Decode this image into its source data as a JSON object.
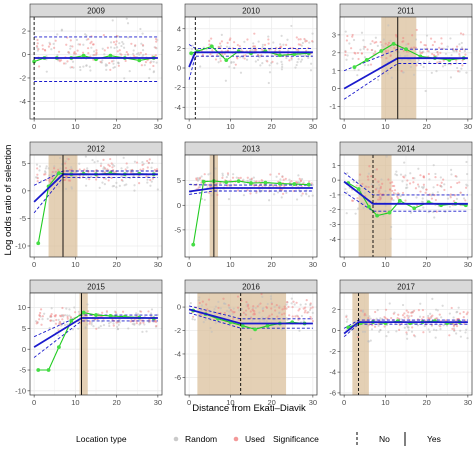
{
  "chart_data": {
    "type": "scatter",
    "layout": "facet-grid-3x3",
    "xlabel": "Distance from Ekati–Diavik",
    "ylabel": "Log odds ratio of selection",
    "x_ticks": [
      0,
      10,
      20,
      30
    ],
    "xlim": [
      -1,
      31
    ],
    "legend": {
      "location_type_title": "Location type",
      "location_types": [
        {
          "name": "Random",
          "color": "#bdbdbd"
        },
        {
          "name": "Used",
          "color": "#f08080"
        }
      ],
      "significance_title": "Significance",
      "significance_levels": [
        "No",
        "Yes"
      ]
    },
    "colors": {
      "fit_line": "#1a1acc",
      "segment_line": "#22cc22",
      "segment_point": "#44dd44",
      "zoi_band": "#d8bc96",
      "strip_bg": "#d9d9d9",
      "panel_border": "#333333",
      "grid": "#ebebeb"
    },
    "panels": [
      {
        "year": "2009",
        "ylim": [
          -5.5,
          3.2
        ],
        "y_ticks": [
          -4,
          -2,
          0,
          2
        ],
        "cloud_center": 0,
        "cloud_spread": 1.4,
        "fit": [
          [
            0,
            -0.3
          ],
          [
            30,
            -0.3
          ]
        ],
        "ci": [
          [
            -2.3,
            1.5
          ],
          [
            -2.3,
            1.5
          ]
        ],
        "zoi": null,
        "threshold": 0,
        "significant": false,
        "segments": [
          [
            0,
            -0.6
          ],
          [
            2.5,
            -0.3
          ],
          [
            5.5,
            -0.3
          ],
          [
            9,
            -0.3
          ],
          [
            12,
            -0.1
          ],
          [
            15,
            -0.4
          ],
          [
            18.5,
            -0.1
          ],
          [
            22,
            -0.3
          ],
          [
            25.5,
            -0.5
          ],
          [
            29,
            -0.3
          ]
        ]
      },
      {
        "year": "2010",
        "ylim": [
          -5.2,
          5.2
        ],
        "y_ticks": [
          -4,
          -2,
          0,
          2,
          4
        ],
        "cloud_center": 1.6,
        "cloud_spread": 1.3,
        "fit": [
          [
            0,
            0.1
          ],
          [
            1.5,
            1.6
          ],
          [
            30,
            1.6
          ]
        ],
        "ci": [
          [
            -1.2,
            2.4
          ],
          [
            1.2,
            2.0
          ]
        ],
        "zoi": null,
        "threshold": 1.5,
        "significant": false,
        "segments": [
          [
            0.5,
            1.5
          ],
          [
            2,
            1.7
          ],
          [
            5.5,
            2.2
          ],
          [
            9,
            0.8
          ],
          [
            12,
            1.7
          ],
          [
            15,
            1.5
          ],
          [
            18.5,
            1.7
          ],
          [
            22,
            1.3
          ],
          [
            25.5,
            1.4
          ],
          [
            29,
            1.5
          ]
        ]
      },
      {
        "year": "2011",
        "ylim": [
          -1.7,
          4.0
        ],
        "y_ticks": [
          -1,
          0,
          1,
          2,
          3
        ],
        "cloud_center": 1.9,
        "cloud_spread": 0.9,
        "fit": [
          [
            0,
            0.0
          ],
          [
            13,
            1.7
          ],
          [
            30,
            1.7
          ]
        ],
        "ci": [
          [
            -0.6,
            1.0
          ],
          [
            1.4,
            2.2
          ]
        ],
        "zoi": [
          9,
          17.5
        ],
        "threshold": 13,
        "significant": true,
        "segments": [
          [
            2.5,
            1.2
          ],
          [
            5.5,
            1.6
          ],
          [
            9,
            2.1
          ],
          [
            12,
            2.5
          ],
          [
            15,
            2.2
          ],
          [
            18.5,
            1.8
          ],
          [
            22,
            1.7
          ],
          [
            25.5,
            1.6
          ],
          [
            29,
            1.7
          ]
        ]
      },
      {
        "year": "2012",
        "ylim": [
          -12,
          6.5
        ],
        "y_ticks": [
          -10,
          -5,
          0,
          5
        ],
        "cloud_center": 3,
        "cloud_spread": 2.0,
        "fit": [
          [
            0,
            -2.0
          ],
          [
            7,
            3.0
          ],
          [
            30,
            3.0
          ]
        ],
        "ci": [
          [
            -4.0,
            1.0
          ],
          [
            2.4,
            3.6
          ]
        ],
        "zoi": [
          3.5,
          10.5
        ],
        "threshold": 7,
        "significant": true,
        "segments": [
          [
            1,
            -9.5
          ],
          [
            3.5,
            0.8
          ],
          [
            6,
            3.2
          ],
          [
            9,
            3.0
          ],
          [
            12,
            3.1
          ],
          [
            15,
            3.0
          ],
          [
            18.5,
            3.2
          ],
          [
            22,
            3.0
          ],
          [
            25.5,
            3.1
          ],
          [
            29,
            3.0
          ]
        ]
      },
      {
        "year": "2013",
        "ylim": [
          -10.5,
          10.2
        ],
        "y_ticks": [
          -5,
          0,
          5
        ],
        "cloud_center": 4,
        "cloud_spread": 1.8,
        "fit": [
          [
            0,
            2.8
          ],
          [
            6,
            3.5
          ],
          [
            30,
            3.5
          ]
        ],
        "ci": [
          [
            2.2,
            4.2
          ],
          [
            2.9,
            4.1
          ]
        ],
        "zoi": [
          5,
          7
        ],
        "threshold": 6,
        "significant": true,
        "segments": [
          [
            1,
            -8
          ],
          [
            3.5,
            4.8
          ],
          [
            6,
            4.9
          ],
          [
            9,
            4.7
          ],
          [
            12,
            4.9
          ],
          [
            15,
            4.5
          ],
          [
            18.5,
            4.6
          ],
          [
            22,
            4.4
          ],
          [
            25.5,
            4.3
          ],
          [
            29,
            4.2
          ]
        ]
      },
      {
        "year": "2014",
        "ylim": [
          -5.2,
          1.7
        ],
        "y_ticks": [
          -4,
          -3,
          -2,
          -1,
          0,
          1
        ],
        "cloud_center": -0.8,
        "cloud_spread": 1.2,
        "fit": [
          [
            0,
            -0.1
          ],
          [
            7,
            -1.6
          ],
          [
            30,
            -1.6
          ]
        ],
        "ci": [
          [
            -0.8,
            0.5
          ],
          [
            -2.1,
            -1.0
          ]
        ],
        "zoi": [
          3.5,
          11.5
        ],
        "threshold": 7,
        "significant": false,
        "segments": [
          [
            1,
            -0.2
          ],
          [
            3.5,
            -0.6
          ],
          [
            6,
            -1.8
          ],
          [
            8,
            -2.4
          ],
          [
            11,
            -2.2
          ],
          [
            13.5,
            -1.4
          ],
          [
            17,
            -1.9
          ],
          [
            20.5,
            -1.5
          ],
          [
            23.5,
            -1.7
          ],
          [
            27,
            -1.6
          ],
          [
            29.5,
            -1.7
          ]
        ]
      },
      {
        "year": "2015",
        "ylim": [
          -11,
          13.5
        ],
        "y_ticks": [
          -10,
          -5,
          0,
          5,
          10
        ],
        "cloud_center": 7,
        "cloud_spread": 1.8,
        "fit": [
          [
            0,
            0.5
          ],
          [
            11.5,
            7.5
          ],
          [
            30,
            7.5
          ]
        ],
        "ci": [
          [
            -2.0,
            3.0
          ],
          [
            6.8,
            8.2
          ]
        ],
        "zoi": [
          11,
          13
        ],
        "threshold": 11.5,
        "significant": true,
        "segments": [
          [
            1,
            -5
          ],
          [
            3.5,
            -5
          ],
          [
            6,
            0.5
          ],
          [
            9,
            6.8
          ],
          [
            12,
            8.8
          ],
          [
            15,
            8.2
          ],
          [
            18.5,
            8.0
          ],
          [
            22,
            7.8
          ],
          [
            25.5,
            7.6
          ],
          [
            29,
            7.4
          ]
        ]
      },
      {
        "year": "2016",
        "ylim": [
          -7.5,
          1.2
        ],
        "y_ticks": [
          -6,
          -4,
          -2,
          0
        ],
        "cloud_center": -0.6,
        "cloud_spread": 1.0,
        "fit": [
          [
            0,
            -0.2
          ],
          [
            12.5,
            -1.4
          ],
          [
            30,
            -1.4
          ]
        ],
        "ci": [
          [
            -0.5,
            0.1
          ],
          [
            -1.8,
            -1.0
          ]
        ],
        "zoi": [
          2,
          23.5
        ],
        "threshold": 12.5,
        "significant": false,
        "segments": [
          [
            1,
            -0.3
          ],
          [
            4,
            -0.6
          ],
          [
            7,
            -1.0
          ],
          [
            10,
            -1.3
          ],
          [
            13,
            -1.6
          ],
          [
            16,
            -1.9
          ],
          [
            19,
            -1.6
          ],
          [
            22,
            -1.4
          ],
          [
            25,
            -1.3
          ],
          [
            28,
            -1.4
          ]
        ]
      },
      {
        "year": "2017",
        "ylim": [
          -6.2,
          3.6
        ],
        "y_ticks": [
          -6,
          -4,
          -2,
          0,
          2
        ],
        "cloud_center": 0.7,
        "cloud_spread": 1.1,
        "fit": [
          [
            0,
            -0.3
          ],
          [
            3.5,
            0.8
          ],
          [
            30,
            0.8
          ]
        ],
        "ci": [
          [
            -0.6,
            0.2
          ],
          [
            0.6,
            1.0
          ]
        ],
        "zoi": [
          2,
          6
        ],
        "threshold": 3.5,
        "significant": false,
        "segments": [
          [
            1,
            0.3
          ],
          [
            4,
            0.7
          ],
          [
            7,
            0.8
          ],
          [
            10,
            0.7
          ],
          [
            13,
            0.9
          ],
          [
            16,
            0.7
          ],
          [
            19,
            0.8
          ],
          [
            22,
            0.9
          ],
          [
            25,
            0.7
          ],
          [
            28,
            0.8
          ]
        ]
      }
    ]
  }
}
